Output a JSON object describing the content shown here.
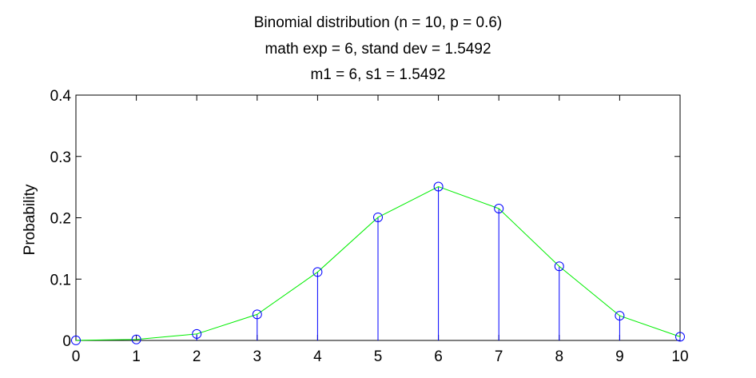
{
  "chart_data": {
    "type": "stem",
    "title": [
      "Binomial distribution (n = 10, p = 0.6)",
      "math exp = 6, stand dev = 1.5492",
      "m1 = 6, s1 = 1.5492"
    ],
    "xlabel": "",
    "ylabel": "Probability",
    "xlim": [
      0,
      10
    ],
    "ylim": [
      0,
      0.4
    ],
    "xticks": [
      "0",
      "1",
      "2",
      "3",
      "4",
      "5",
      "6",
      "7",
      "8",
      "9",
      "10"
    ],
    "yticks": [
      "0",
      "0.1",
      "0.2",
      "0.3",
      "0.4"
    ],
    "grid": false,
    "x": [
      0,
      1,
      2,
      3,
      4,
      5,
      6,
      7,
      8,
      9,
      10
    ],
    "series": [
      {
        "style": "stem-with-circle-markers",
        "values": [
          0.0001,
          0.0016,
          0.0106,
          0.0425,
          0.1115,
          0.2007,
          0.2508,
          0.215,
          0.1209,
          0.0403,
          0.006
        ]
      },
      {
        "style": "line",
        "values": [
          0.0001,
          0.0016,
          0.0106,
          0.0425,
          0.1115,
          0.2007,
          0.2508,
          0.215,
          0.1209,
          0.0403,
          0.006
        ]
      }
    ],
    "colors": {
      "stem": "#0000ff",
      "line": "#00ee00",
      "axes": "#000000"
    }
  }
}
